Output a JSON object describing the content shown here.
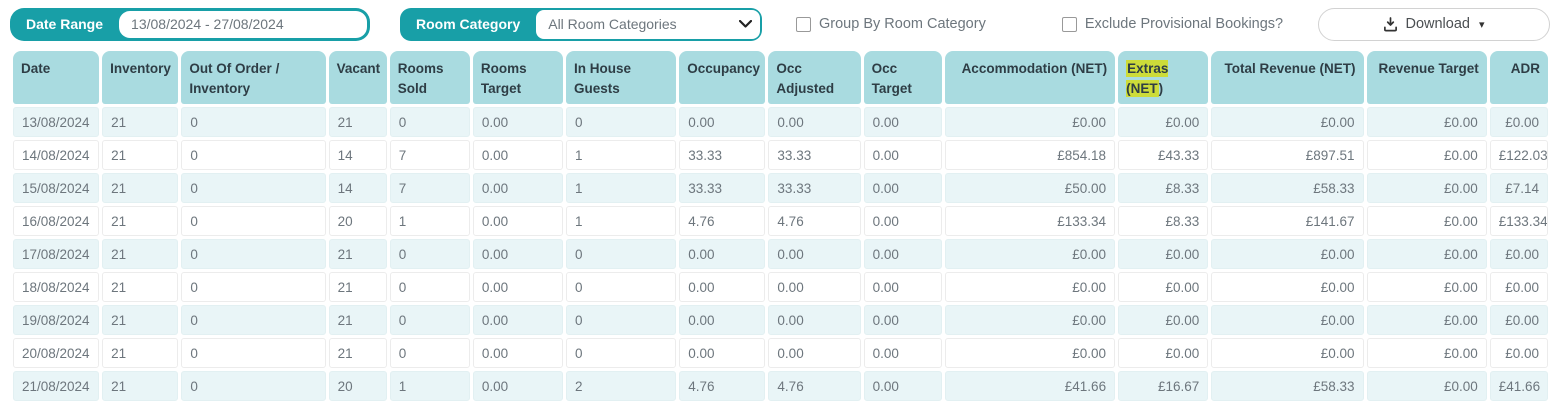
{
  "toolbar": {
    "date_range": {
      "label": "Date Range",
      "value": "13/08/2024 - 27/08/2024"
    },
    "room_category": {
      "label": "Room Category",
      "selected_option": "All Room Categories"
    },
    "checkboxes": [
      {
        "label": "Group By Room Category",
        "checked": false
      },
      {
        "label": "Exclude Provisional Bookings?",
        "checked": false
      }
    ],
    "download": {
      "label": "Download",
      "icon": "download-icon",
      "caret": "▾"
    }
  },
  "colors": {
    "teal_accent": "#189fa7",
    "header_cell_bg": "#a9dbe0",
    "odd_row_bg": "#e9f5f7",
    "highlight_yellow": "#cddc39",
    "body_text": "#6d767d",
    "header_text": "#2e3d45"
  },
  "table": {
    "columns": [
      "Date",
      "Inventory",
      "Out Of Order / Inventory",
      "Vacant",
      "Rooms Sold",
      "Rooms Target",
      "In House Guests",
      "Occupancy",
      "Occ Adjusted",
      "Occ Target",
      "Accommodation (NET)",
      "Extras (NET)",
      "Total Revenue (NET)",
      "Revenue Target",
      "ADR"
    ],
    "extras_header": {
      "highlight": "Extras (NET",
      "suffix": ")"
    },
    "rows": [
      [
        "13/08/2024",
        "21",
        "0",
        "21",
        "0",
        "0.00",
        "0",
        "0.00",
        "0.00",
        "0.00",
        "£0.00",
        "£0.00",
        "£0.00",
        "£0.00",
        "£0.00"
      ],
      [
        "14/08/2024",
        "21",
        "0",
        "14",
        "7",
        "0.00",
        "1",
        "33.33",
        "33.33",
        "0.00",
        "£854.18",
        "£43.33",
        "£897.51",
        "£0.00",
        "£122.03"
      ],
      [
        "15/08/2024",
        "21",
        "0",
        "14",
        "7",
        "0.00",
        "1",
        "33.33",
        "33.33",
        "0.00",
        "£50.00",
        "£8.33",
        "£58.33",
        "£0.00",
        "£7.14"
      ],
      [
        "16/08/2024",
        "21",
        "0",
        "20",
        "1",
        "0.00",
        "1",
        "4.76",
        "4.76",
        "0.00",
        "£133.34",
        "£8.33",
        "£141.67",
        "£0.00",
        "£133.34"
      ],
      [
        "17/08/2024",
        "21",
        "0",
        "21",
        "0",
        "0.00",
        "0",
        "0.00",
        "0.00",
        "0.00",
        "£0.00",
        "£0.00",
        "£0.00",
        "£0.00",
        "£0.00"
      ],
      [
        "18/08/2024",
        "21",
        "0",
        "21",
        "0",
        "0.00",
        "0",
        "0.00",
        "0.00",
        "0.00",
        "£0.00",
        "£0.00",
        "£0.00",
        "£0.00",
        "£0.00"
      ],
      [
        "19/08/2024",
        "21",
        "0",
        "21",
        "0",
        "0.00",
        "0",
        "0.00",
        "0.00",
        "0.00",
        "£0.00",
        "£0.00",
        "£0.00",
        "£0.00",
        "£0.00"
      ],
      [
        "20/08/2024",
        "21",
        "0",
        "21",
        "0",
        "0.00",
        "0",
        "0.00",
        "0.00",
        "0.00",
        "£0.00",
        "£0.00",
        "£0.00",
        "£0.00",
        "£0.00"
      ],
      [
        "21/08/2024",
        "21",
        "0",
        "20",
        "1",
        "0.00",
        "2",
        "4.76",
        "4.76",
        "0.00",
        "£41.66",
        "£16.67",
        "£58.33",
        "£0.00",
        "£41.66"
      ]
    ]
  }
}
